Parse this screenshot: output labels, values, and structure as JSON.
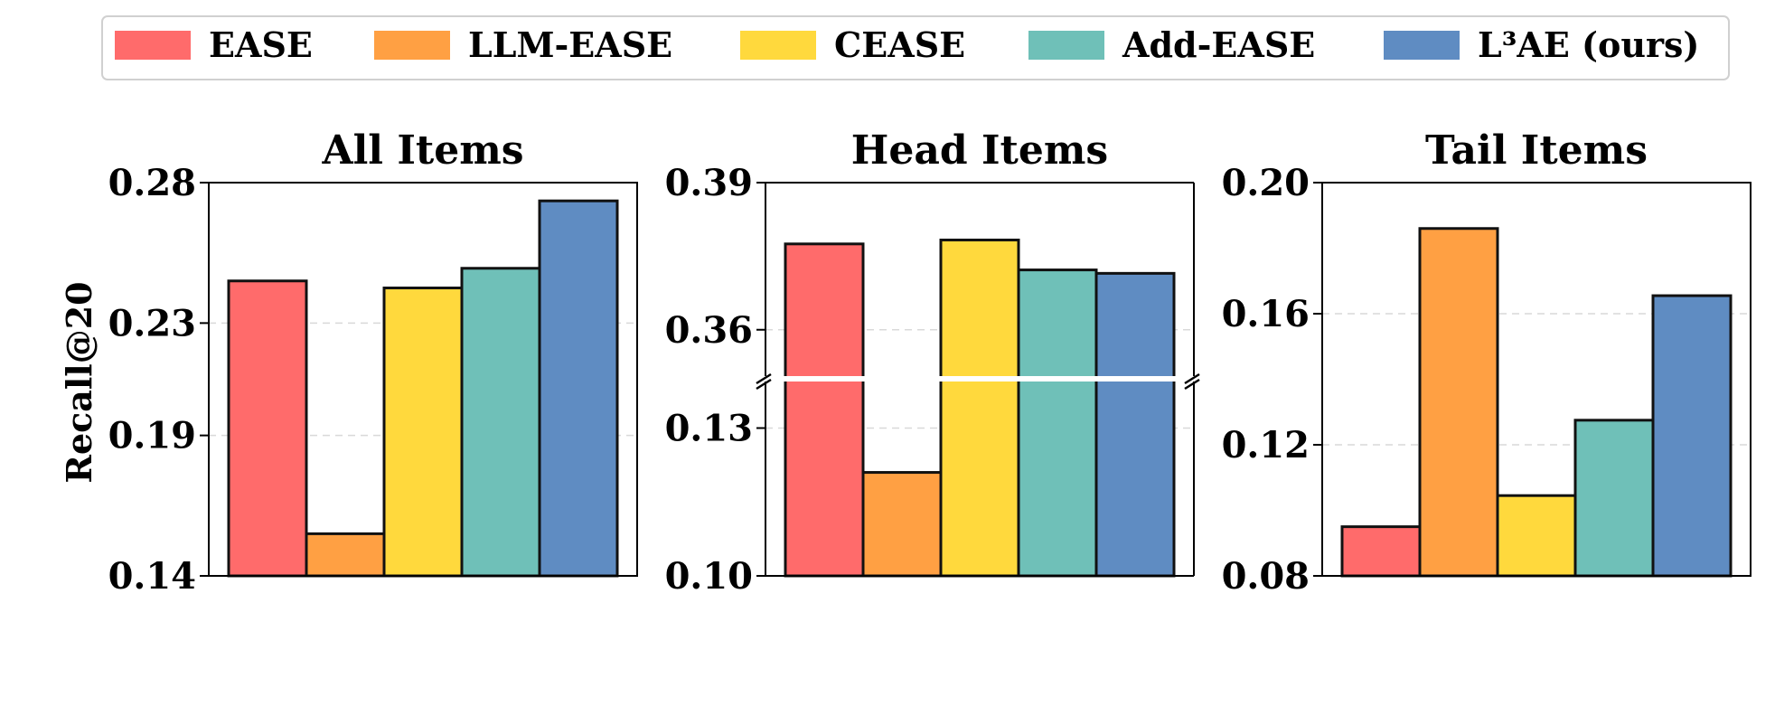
{
  "legend": {
    "items": [
      {
        "label": "EASE",
        "color": "#FF6B6B"
      },
      {
        "label": "LLM-EASE",
        "color": "#FFA043"
      },
      {
        "label": "CEASE",
        "color": "#FFD93D"
      },
      {
        "label": "Add-EASE",
        "color": "#6FC0B8"
      },
      {
        "label": "L³AE (ours)",
        "color": "#5F8CC2"
      }
    ],
    "placement": "top"
  },
  "chart_data": [
    {
      "type": "bar",
      "title": "All Items",
      "ylabel": "Recall@20",
      "series_names": [
        "EASE",
        "LLM-EASE",
        "CEASE",
        "Add-EASE",
        "L³AE (ours)"
      ],
      "values": [
        0.245,
        0.155,
        0.2425,
        0.2495,
        0.2735
      ],
      "ylim": [
        0.14,
        0.28
      ],
      "yticks": [
        "0.14",
        "0.19",
        "0.23",
        "0.28"
      ],
      "grid": "dashed-y",
      "broken_axis": false
    },
    {
      "type": "bar",
      "title": "Head Items",
      "ylabel": "",
      "series_names": [
        "EASE",
        "LLM-EASE",
        "CEASE",
        "Add-EASE",
        "L³AE (ours)"
      ],
      "values": [
        0.3775,
        0.121,
        0.3783,
        0.3722,
        0.3715
      ],
      "ylim_lower": [
        0.1,
        0.14
      ],
      "ylim_upper": [
        0.35,
        0.39
      ],
      "yticks": [
        "0.10",
        "0.13",
        "0.36",
        "0.39"
      ],
      "grid": "dashed-y",
      "broken_axis": true
    },
    {
      "type": "bar",
      "title": "Tail Items",
      "ylabel": "",
      "series_names": [
        "EASE",
        "LLM-EASE",
        "CEASE",
        "Add-EASE",
        "L³AE (ours)"
      ],
      "values": [
        0.095,
        0.186,
        0.1045,
        0.1275,
        0.1655
      ],
      "ylim": [
        0.08,
        0.2
      ],
      "yticks": [
        "0.08",
        "0.12",
        "0.16",
        "0.20"
      ],
      "grid": "dashed-y",
      "broken_axis": false
    }
  ]
}
